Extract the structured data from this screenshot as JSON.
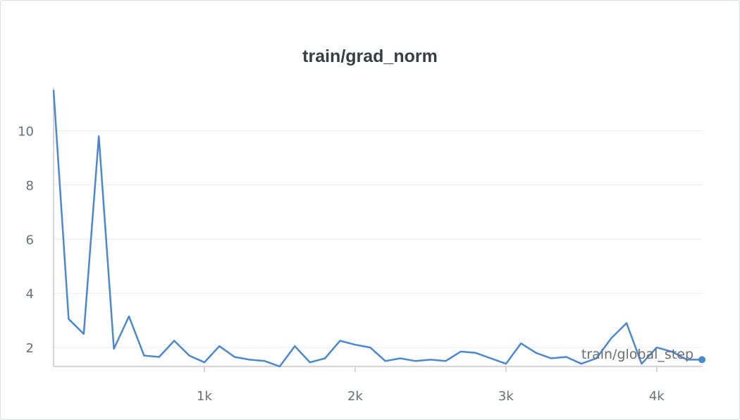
{
  "chart_data": {
    "type": "line",
    "title": "train/grad_norm",
    "xlabel": "train/global_step",
    "ylabel": "",
    "xlim": [
      0,
      4300
    ],
    "ylim": [
      1.3,
      11.6
    ],
    "grid": true,
    "x_ticks": [
      1000,
      2000,
      3000,
      4000
    ],
    "x_tick_labels": [
      "1k",
      "2k",
      "3k",
      "4k"
    ],
    "y_ticks": [
      2,
      4,
      6,
      8,
      10
    ],
    "y_tick_labels": [
      "2",
      "4",
      "6",
      "8",
      "10"
    ],
    "series": [
      {
        "color": "#4a88d2",
        "x": [
          0,
          100,
          200,
          300,
          400,
          500,
          600,
          700,
          800,
          900,
          1000,
          1100,
          1200,
          1300,
          1400,
          1500,
          1600,
          1700,
          1800,
          1900,
          2000,
          2100,
          2200,
          2300,
          2400,
          2500,
          2600,
          2700,
          2800,
          2900,
          3000,
          3100,
          3200,
          3300,
          3400,
          3500,
          3600,
          3700,
          3800,
          3900,
          4000,
          4100,
          4200,
          4300
        ],
        "y": [
          11.5,
          3.05,
          2.5,
          9.8,
          1.95,
          3.15,
          1.7,
          1.65,
          2.25,
          1.7,
          1.45,
          2.05,
          1.65,
          1.55,
          1.5,
          1.3,
          2.05,
          1.45,
          1.6,
          2.25,
          2.1,
          2.0,
          1.5,
          1.6,
          1.5,
          1.55,
          1.5,
          1.85,
          1.8,
          1.6,
          1.4,
          2.15,
          1.8,
          1.6,
          1.65,
          1.4,
          1.6,
          2.35,
          2.9,
          1.4,
          2.0,
          1.85,
          1.55,
          1.55
        ]
      }
    ]
  }
}
